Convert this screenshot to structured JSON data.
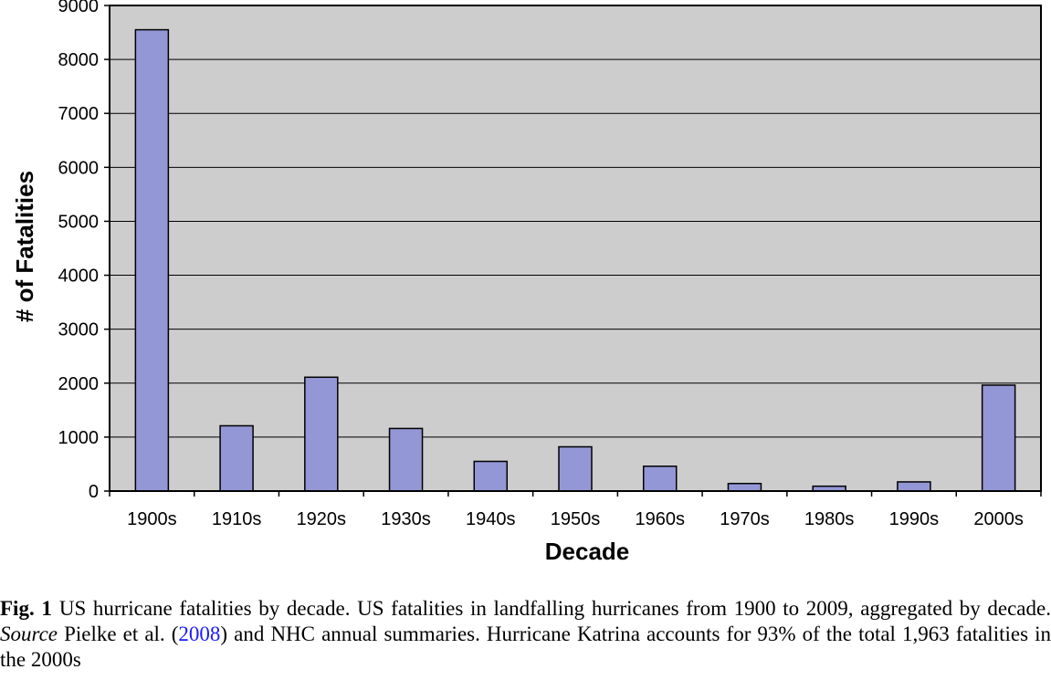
{
  "chart_data": {
    "type": "bar",
    "categories": [
      "1900s",
      "1910s",
      "1920s",
      "1930s",
      "1940s",
      "1950s",
      "1960s",
      "1970s",
      "1980s",
      "1990s",
      "2000s"
    ],
    "values": [
      8550,
      1210,
      2110,
      1160,
      550,
      820,
      460,
      140,
      90,
      170,
      1963
    ],
    "xlabel": "Decade",
    "ylabel": "# of Fatalities",
    "ylim": [
      0,
      9000
    ],
    "yticks": [
      0,
      1000,
      2000,
      3000,
      4000,
      5000,
      6000,
      7000,
      8000,
      9000
    ],
    "grid": true,
    "bar_color": "#9497d6",
    "plot_bg": "#cdcdcd"
  },
  "caption": {
    "label": "Fig. 1",
    "text1": "US hurricane fatalities by decade. US fatalities in landfalling hurricanes from 1900 to 2009, aggregated by decade. ",
    "source_label": "Source",
    "text2": " Pielke et al. (",
    "ref_year": "2008",
    "text3": ") and NHC annual summaries. Hurricane Katrina accounts for 93% of the total 1,963 fatalities in the 2000s"
  }
}
